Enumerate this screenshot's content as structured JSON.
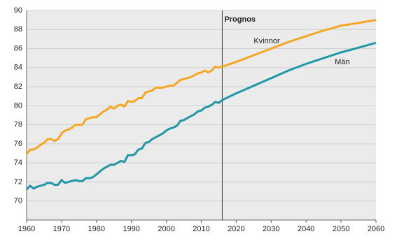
{
  "chart_data": {
    "type": "line",
    "x": [
      1960,
      1961,
      1962,
      1963,
      1964,
      1965,
      1966,
      1967,
      1968,
      1969,
      1970,
      1971,
      1972,
      1973,
      1974,
      1975,
      1976,
      1977,
      1978,
      1979,
      1980,
      1981,
      1982,
      1983,
      1984,
      1985,
      1986,
      1987,
      1988,
      1989,
      1990,
      1991,
      1992,
      1993,
      1994,
      1995,
      1996,
      1997,
      1998,
      1999,
      2000,
      2001,
      2002,
      2003,
      2004,
      2005,
      2006,
      2007,
      2008,
      2009,
      2010,
      2011,
      2012,
      2013,
      2014,
      2015,
      2016,
      2020,
      2025,
      2030,
      2035,
      2040,
      2045,
      2050,
      2055,
      2060
    ],
    "series": [
      {
        "name": "Kvinnor",
        "color": "#f5a623",
        "values": [
          74.9,
          75.4,
          75.4,
          75.6,
          75.9,
          76.1,
          76.5,
          76.5,
          76.3,
          76.5,
          77.1,
          77.4,
          77.5,
          77.7,
          78.0,
          78.0,
          78.0,
          78.6,
          78.7,
          78.8,
          78.8,
          79.1,
          79.4,
          79.6,
          79.9,
          79.7,
          80.0,
          80.1,
          79.9,
          80.5,
          80.4,
          80.5,
          80.8,
          80.8,
          81.4,
          81.5,
          81.6,
          81.9,
          81.9,
          81.9,
          82.0,
          82.1,
          82.1,
          82.4,
          82.7,
          82.8,
          82.9,
          83.0,
          83.2,
          83.4,
          83.5,
          83.7,
          83.5,
          83.7,
          84.1,
          84.0,
          84.1,
          84.6,
          85.3,
          86.0,
          86.7,
          87.3,
          87.9,
          88.4,
          88.7,
          89.0
        ]
      },
      {
        "name": "Män",
        "color": "#2196a6",
        "values": [
          71.2,
          71.6,
          71.3,
          71.5,
          71.6,
          71.7,
          71.9,
          71.9,
          71.7,
          71.7,
          72.2,
          71.9,
          72.0,
          72.1,
          72.2,
          72.1,
          72.1,
          72.4,
          72.4,
          72.5,
          72.8,
          73.1,
          73.4,
          73.6,
          73.8,
          73.8,
          74.0,
          74.2,
          74.1,
          74.8,
          74.8,
          74.9,
          75.4,
          75.5,
          76.1,
          76.2,
          76.5,
          76.7,
          76.9,
          77.1,
          77.4,
          77.6,
          77.7,
          77.9,
          78.4,
          78.5,
          78.7,
          78.9,
          79.1,
          79.4,
          79.5,
          79.8,
          79.9,
          80.1,
          80.4,
          80.3,
          80.6,
          81.3,
          82.1,
          82.9,
          83.7,
          84.4,
          85.0,
          85.6,
          86.1,
          86.6
        ]
      }
    ],
    "annotation": {
      "text": "Prognos",
      "x": 2016
    },
    "xlim": [
      1960,
      2060
    ],
    "xticks": [
      1960,
      1970,
      1980,
      1990,
      2000,
      2010,
      2020,
      2030,
      2040,
      2050,
      2060
    ],
    "ylim": [
      68,
      90
    ],
    "yticks": [
      70,
      72,
      74,
      76,
      78,
      80,
      82,
      84,
      86,
      88,
      90
    ],
    "grid": true
  }
}
